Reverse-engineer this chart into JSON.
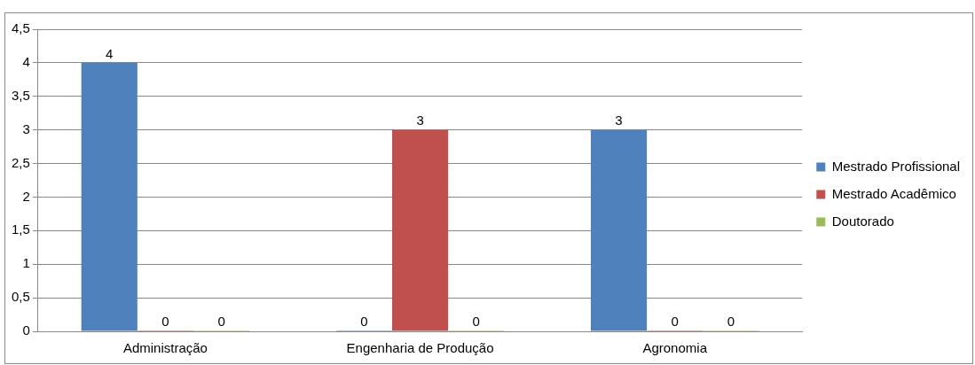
{
  "chart_data": {
    "type": "bar",
    "categories": [
      "Administração",
      "Engenharia de Produção",
      "Agronomia"
    ],
    "series": [
      {
        "name": "Mestrado Profissional",
        "color": "#4f81bd",
        "values": [
          4,
          0,
          3
        ]
      },
      {
        "name": "Mestrado Acadêmico",
        "color": "#c0504d",
        "values": [
          0,
          3,
          0
        ]
      },
      {
        "name": "Doutorado",
        "color": "#9bbb59",
        "values": [
          0,
          0,
          0
        ]
      }
    ],
    "ylim": [
      0,
      4.5
    ],
    "yticks": [
      0,
      {
        "value": 0.5,
        "label": "0,5"
      },
      1,
      {
        "value": 1.5,
        "label": "1,5"
      },
      2,
      {
        "value": 2.5,
        "label": "2,5"
      },
      3,
      {
        "value": 3.5,
        "label": "3,5"
      },
      4,
      {
        "value": 4.5,
        "label": "4,5"
      }
    ],
    "grid": "y",
    "legend": "right",
    "data_labels": true
  }
}
